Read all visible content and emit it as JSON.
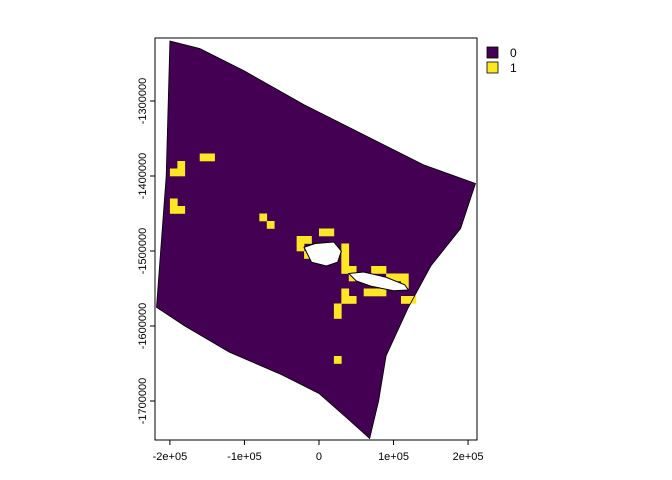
{
  "chart_data": {
    "type": "heatmap",
    "title": "",
    "xlabel": "",
    "ylabel": "",
    "xlim": [
      -220000,
      212000
    ],
    "ylim": [
      -1752000,
      -1216000
    ],
    "cell_size": 10000,
    "x_ticks": [
      {
        "value": -200000,
        "label": "-2e+05"
      },
      {
        "value": -100000,
        "label": "-1e+05"
      },
      {
        "value": 0,
        "label": "0"
      },
      {
        "value": 100000,
        "label": "1e+05"
      },
      {
        "value": 200000,
        "label": "2e+05"
      }
    ],
    "y_ticks": [
      {
        "value": -1300000,
        "label": "-1300000"
      },
      {
        "value": -1400000,
        "label": "-1400000"
      },
      {
        "value": -1500000,
        "label": "-1500000"
      },
      {
        "value": -1600000,
        "label": "-1600000"
      },
      {
        "value": -1700000,
        "label": "-1700000"
      }
    ],
    "legend": {
      "position": "top-right",
      "entries": [
        {
          "label": "0",
          "color": "#440154"
        },
        {
          "label": "1",
          "color": "#FDE725"
        }
      ]
    },
    "grid": false,
    "boundary_polygon": [
      [
        -200000,
        -1220000
      ],
      [
        -160000,
        -1230000
      ],
      [
        -100000,
        -1260000
      ],
      [
        -20000,
        -1305000
      ],
      [
        50000,
        -1340000
      ],
      [
        140000,
        -1385000
      ],
      [
        210000,
        -1410000
      ],
      [
        190000,
        -1470000
      ],
      [
        150000,
        -1520000
      ],
      [
        120000,
        -1575000
      ],
      [
        90000,
        -1640000
      ],
      [
        80000,
        -1700000
      ],
      [
        68000,
        -1750000
      ],
      [
        40000,
        -1725000
      ],
      [
        0,
        -1690000
      ],
      [
        -50000,
        -1665000
      ],
      [
        -120000,
        -1635000
      ],
      [
        -180000,
        -1600000
      ],
      [
        -218000,
        -1575000
      ],
      [
        -205000,
        -1400000
      ]
    ],
    "value_1_cells": [
      [
        -200000,
        -1400000
      ],
      [
        -190000,
        -1400000
      ],
      [
        -190000,
        -1390000
      ],
      [
        -160000,
        -1380000
      ],
      [
        -150000,
        -1380000
      ],
      [
        -200000,
        -1440000
      ],
      [
        -200000,
        -1450000
      ],
      [
        -190000,
        -1450000
      ],
      [
        -80000,
        -1460000
      ],
      [
        -70000,
        -1470000
      ],
      [
        -30000,
        -1490000
      ],
      [
        -20000,
        -1490000
      ],
      [
        -30000,
        -1500000
      ],
      [
        -20000,
        -1510000
      ],
      [
        0,
        -1480000
      ],
      [
        10000,
        -1480000
      ],
      [
        30000,
        -1500000
      ],
      [
        30000,
        -1510000
      ],
      [
        30000,
        -1520000
      ],
      [
        30000,
        -1530000
      ],
      [
        40000,
        -1530000
      ],
      [
        40000,
        -1540000
      ],
      [
        50000,
        -1540000
      ],
      [
        70000,
        -1530000
      ],
      [
        80000,
        -1530000
      ],
      [
        90000,
        -1540000
      ],
      [
        100000,
        -1540000
      ],
      [
        110000,
        -1540000
      ],
      [
        110000,
        -1550000
      ],
      [
        60000,
        -1560000
      ],
      [
        70000,
        -1560000
      ],
      [
        80000,
        -1560000
      ],
      [
        30000,
        -1560000
      ],
      [
        30000,
        -1570000
      ],
      [
        40000,
        -1570000
      ],
      [
        110000,
        -1570000
      ],
      [
        120000,
        -1570000
      ],
      [
        20000,
        -1580000
      ],
      [
        20000,
        -1590000
      ],
      [
        20000,
        -1650000
      ]
    ],
    "no_data_islands": [
      [
        [
          -20000,
          -1495000
        ],
        [
          -5000,
          -1490000
        ],
        [
          20000,
          -1488000
        ],
        [
          30000,
          -1500000
        ],
        [
          25000,
          -1515000
        ],
        [
          10000,
          -1520000
        ],
        [
          -10000,
          -1515000
        ]
      ],
      [
        [
          40000,
          -1530000
        ],
        [
          60000,
          -1528000
        ],
        [
          90000,
          -1535000
        ],
        [
          115000,
          -1545000
        ],
        [
          120000,
          -1552000
        ],
        [
          100000,
          -1553000
        ],
        [
          70000,
          -1547000
        ],
        [
          50000,
          -1540000
        ]
      ]
    ]
  }
}
